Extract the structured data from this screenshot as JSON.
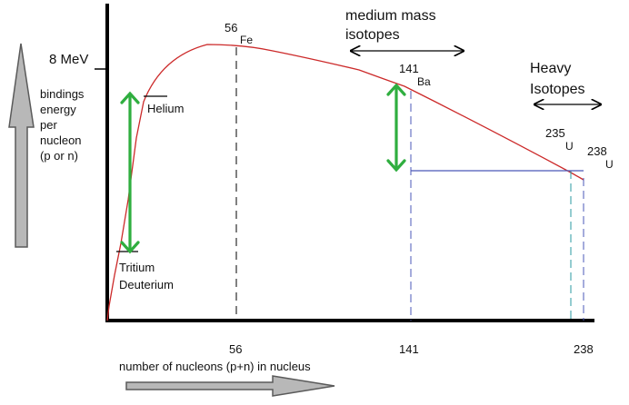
{
  "y_tick_label": "8 MeV",
  "y_axis_label_lines": [
    "bindings",
    "energy",
    "per",
    "nucleon",
    "(p or n)"
  ],
  "x_axis_label": "number of nucleons (p+n) in nucleus",
  "x_ticks": [
    "56",
    "141",
    "238"
  ],
  "annotations": {
    "helium": "Helium",
    "tritium": "Tritium",
    "deuterium": "Deuterium",
    "fe_mass": "56",
    "fe_symbol": "Fe",
    "ba_mass": "141",
    "ba_symbol": "Ba",
    "u235_mass": "235",
    "u235_symbol": "U",
    "u238_mass": "238",
    "u238_symbol": "U"
  },
  "region_labels": {
    "medium": [
      "medium mass",
      "isotopes"
    ],
    "heavy": [
      "Heavy",
      "Isotopes"
    ]
  },
  "colors": {
    "curve": "#cc2a2a",
    "green_arrow": "#2fae3f",
    "blue_guide": "#4b58b8",
    "teal_guide": "#2a9aa0",
    "axis": "#000000",
    "big_arrow_fill": "#b8b8b8",
    "big_arrow_stroke": "#5a5a5a"
  }
}
